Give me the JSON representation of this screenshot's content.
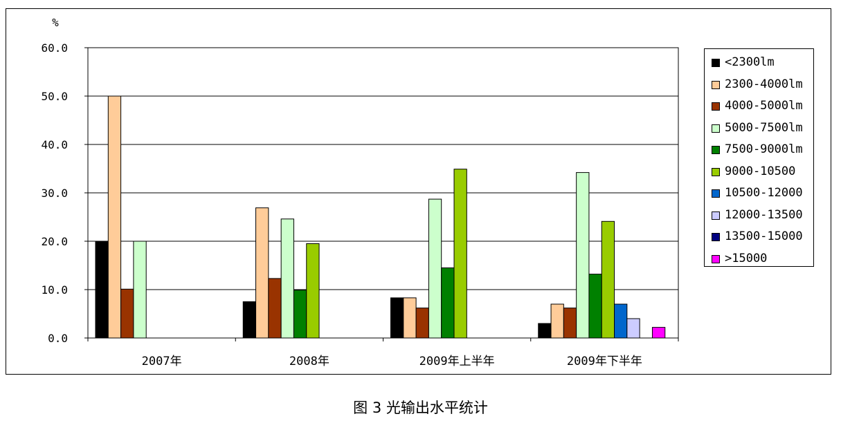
{
  "chart_data": {
    "type": "bar",
    "ylabel": "%",
    "ylim": [
      0,
      60
    ],
    "yticks": [
      "60.0",
      "50.0",
      "40.0",
      "30.0",
      "20.0",
      "10.0",
      "0.0"
    ],
    "ytick_values": [
      60,
      50,
      40,
      30,
      20,
      10,
      0
    ],
    "grid": true,
    "legend_position": "right",
    "categories": [
      "2007年",
      "2008年",
      "2009年上半年",
      "2009年下半年"
    ],
    "series": [
      {
        "name": "<2300lm",
        "color": "#000000",
        "values": [
          20.0,
          7.5,
          8.3,
          3.0
        ]
      },
      {
        "name": "2300-4000lm",
        "color": "#FFCC99",
        "values": [
          50.0,
          26.9,
          8.3,
          7.0
        ]
      },
      {
        "name": "4000-5000lm",
        "color": "#993300",
        "values": [
          10.1,
          12.3,
          6.2,
          6.2
        ]
      },
      {
        "name": "5000-7500lm",
        "color": "#CCFFCC",
        "values": [
          20.0,
          24.6,
          28.7,
          34.2
        ]
      },
      {
        "name": "7500-9000lm",
        "color": "#008000",
        "values": [
          0,
          9.9,
          14.5,
          13.2
        ]
      },
      {
        "name": "9000-10500",
        "color": "#99CC00",
        "values": [
          0,
          19.5,
          34.9,
          24.1
        ]
      },
      {
        "name": "10500-12000",
        "color": "#0066CC",
        "values": [
          0,
          0,
          0,
          7.0
        ]
      },
      {
        "name": "12000-13500",
        "color": "#CCCCFF",
        "values": [
          0,
          0,
          0,
          4.0
        ]
      },
      {
        "name": "13500-15000",
        "color": "#000080",
        "values": [
          0,
          0,
          0,
          0
        ]
      },
      {
        "name": ">15000",
        "color": "#FF00FF",
        "values": [
          0,
          0,
          0,
          2.2
        ]
      }
    ]
  },
  "legend_labels": [
    "<2300lm",
    "2300-4000lm",
    "4000-5000lm",
    "5000-7500lm",
    "7500-9000lm",
    "9000-10500",
    "10500-12000",
    "12000-13500",
    "13500-15000",
    ">15000"
  ],
  "caption": "图 3  光输出水平统计"
}
